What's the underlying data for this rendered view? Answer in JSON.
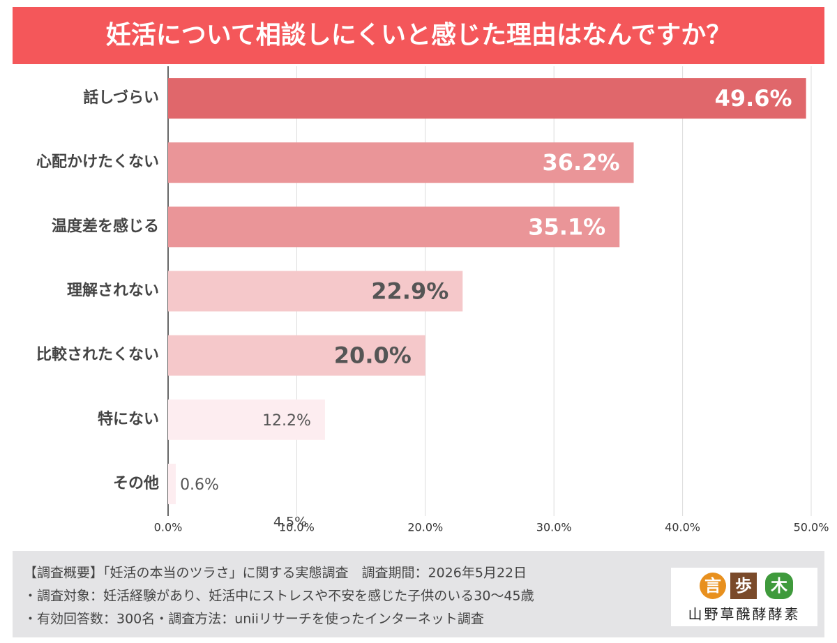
{
  "chart_data": {
    "type": "barh",
    "title": "妊活について相談しにくいと感じた理由はなんですか？",
    "categories": [
      "話しづらい",
      "心配かけたくない",
      "温度差を感じる",
      "理解されない",
      "比較されたくない",
      "特にない",
      "その他"
    ],
    "values": [
      49.6,
      36.2,
      35.1,
      22.9,
      20.0,
      12.2,
      0.6
    ],
    "value_labels": [
      "49.6%",
      "36.2%",
      "35.1%",
      "22.9%",
      "20.0%",
      "12.2%",
      "0.6%"
    ],
    "colors": [
      "#e0676b",
      "#ea9598",
      "#ea9598",
      "#f5c8ca",
      "#f5c8ca",
      "#fdedf0",
      "#fdedf0"
    ],
    "label_colors": [
      "#ffffff",
      "#ffffff",
      "#ffffff",
      "#555555",
      "#555555",
      "#555555",
      "#555555"
    ],
    "xlim": [
      0,
      50
    ],
    "xticks": [
      {
        "value": 0,
        "label": "0.0%"
      },
      {
        "value": 10,
        "label": "10.0%"
      },
      {
        "value": 20,
        "label": "20.0%"
      },
      {
        "value": 30,
        "label": "30.0%"
      },
      {
        "value": 40,
        "label": "40.0%"
      },
      {
        "value": 50,
        "label": "50.0%"
      }
    ],
    "grid": true,
    "annotation": "4.5%"
  },
  "footer": {
    "lines": [
      "【調査概要】「妊活の本当のツラさ」に関する実態調査　調査期間：2026年5月22日",
      "・調査対象：妊活経験があり、妊活中にストレスや不安を感じた子供のいる30～45歳",
      "・有効回答数：300名・調査方法：uniiリサーチを使ったインターネット調査"
    ],
    "logo_marks": [
      "言",
      "歩",
      "木"
    ],
    "brand": "山野草醗酵酵素"
  }
}
